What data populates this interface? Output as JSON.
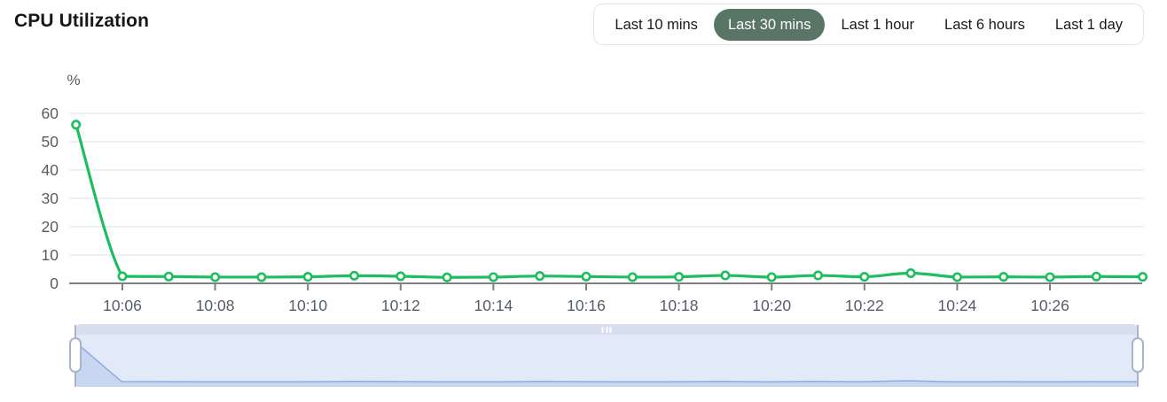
{
  "header": {
    "title": "CPU Utilization"
  },
  "time_range": {
    "buttons": [
      {
        "label": "Last 10 mins",
        "selected": false
      },
      {
        "label": "Last 30 mins",
        "selected": true
      },
      {
        "label": "Last 1 hour",
        "selected": false
      },
      {
        "label": "Last 6 hours",
        "selected": false
      },
      {
        "label": "Last 1 day",
        "selected": false
      }
    ]
  },
  "colors": {
    "line_green": "#1ebd60",
    "selected_pill": "#597566",
    "axis_line": "#7b8187",
    "tick_text": "#575d65",
    "gridline": "#e7ebf3",
    "brush_track": "#d8dfee",
    "brush_bg": "#e2eafa",
    "brush_area_fill": "#c8d6f2",
    "brush_area_line": "#8fabdd",
    "brush_handle_border": "#a9b4ca"
  },
  "chart_data": {
    "type": "line",
    "title": "CPU Utilization",
    "ylabel": "%",
    "ylim": [
      0,
      60
    ],
    "yticks": [
      0,
      10,
      20,
      30,
      40,
      50,
      60
    ],
    "grid": true,
    "legend_position": "none",
    "xticks": [
      "10:06",
      "10:08",
      "10:10",
      "10:12",
      "10:14",
      "10:16",
      "10:18",
      "10:20",
      "10:22",
      "10:24",
      "10:26"
    ],
    "x": [
      "10:05",
      "10:06",
      "10:07",
      "10:08",
      "10:09",
      "10:10",
      "10:11",
      "10:12",
      "10:13",
      "10:14",
      "10:15",
      "10:16",
      "10:17",
      "10:18",
      "10:19",
      "10:20",
      "10:21",
      "10:22",
      "10:23",
      "10:24",
      "10:25",
      "10:26",
      "10:27",
      "10:28"
    ],
    "series": [
      {
        "name": "CPU utilization %",
        "values": [
          56,
          2.5,
          2.4,
          2.2,
          2.2,
          2.3,
          2.7,
          2.5,
          2.1,
          2.2,
          2.6,
          2.4,
          2.2,
          2.3,
          2.8,
          2.2,
          2.8,
          2.3,
          3.6,
          2.2,
          2.3,
          2.2,
          2.4,
          2.3
        ]
      }
    ],
    "marker": "hollow-circle"
  },
  "brush": {
    "selection": "full-range"
  }
}
